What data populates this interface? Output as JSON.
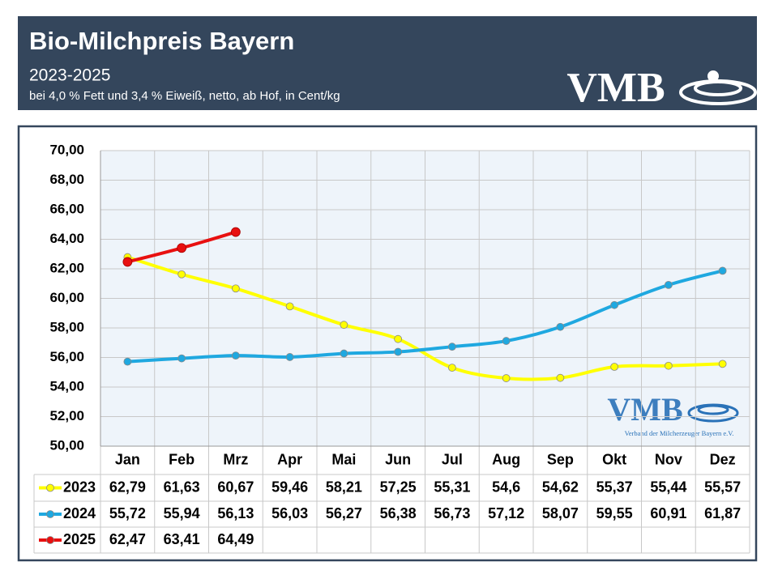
{
  "chart_data": {
    "type": "line",
    "title": "Bio-Milchpreis Bayern",
    "subtitle": "2023-2025",
    "note": "bei 4,0 % Fett und 3,4 % Eiweiß, netto, ab Hof, in Cent/kg",
    "categories": [
      "Jan",
      "Feb",
      "Mrz",
      "Apr",
      "Mai",
      "Jun",
      "Jul",
      "Aug",
      "Sep",
      "Okt",
      "Nov",
      "Dez"
    ],
    "series": [
      {
        "name": "2023",
        "color": "#ffff00",
        "values": [
          62.79,
          61.63,
          60.67,
          59.46,
          58.21,
          57.25,
          55.31,
          54.6,
          54.62,
          55.37,
          55.44,
          55.57
        ],
        "value_labels": [
          "62,79",
          "61,63",
          "60,67",
          "59,46",
          "58,21",
          "57,25",
          "55,31",
          "54,6",
          "54,62",
          "55,37",
          "55,44",
          "55,57"
        ]
      },
      {
        "name": "2024",
        "color": "#1fa8e0",
        "values": [
          55.72,
          55.94,
          56.13,
          56.03,
          56.27,
          56.38,
          56.73,
          57.12,
          58.07,
          59.55,
          60.91,
          61.87
        ],
        "value_labels": [
          "55,72",
          "55,94",
          "56,13",
          "56,03",
          "56,27",
          "56,38",
          "56,73",
          "57,12",
          "58,07",
          "59,55",
          "60,91",
          "61,87"
        ]
      },
      {
        "name": "2025",
        "color": "#e81010",
        "values": [
          62.47,
          63.41,
          64.49,
          null,
          null,
          null,
          null,
          null,
          null,
          null,
          null,
          null
        ],
        "value_labels": [
          "62,47",
          "63,41",
          "64,49",
          null,
          null,
          null,
          null,
          null,
          null,
          null,
          null,
          null
        ]
      }
    ],
    "ylim": [
      50,
      70
    ],
    "yticks": [
      {
        "value": 50,
        "label": "50,00"
      },
      {
        "value": 52,
        "label": "52,00"
      },
      {
        "value": 54,
        "label": "54,00"
      },
      {
        "value": 56,
        "label": "56,00"
      },
      {
        "value": 58,
        "label": "58,00"
      },
      {
        "value": 60,
        "label": "60,00"
      },
      {
        "value": 62,
        "label": "62,00"
      },
      {
        "value": 64,
        "label": "64,00"
      },
      {
        "value": 66,
        "label": "66,00"
      },
      {
        "value": 68,
        "label": "68,00"
      },
      {
        "value": 70,
        "label": "70,00"
      }
    ],
    "grid": true
  },
  "logo": {
    "text": "VMB",
    "caption": "Verband der Milcherzeuger Bayern e.V."
  }
}
